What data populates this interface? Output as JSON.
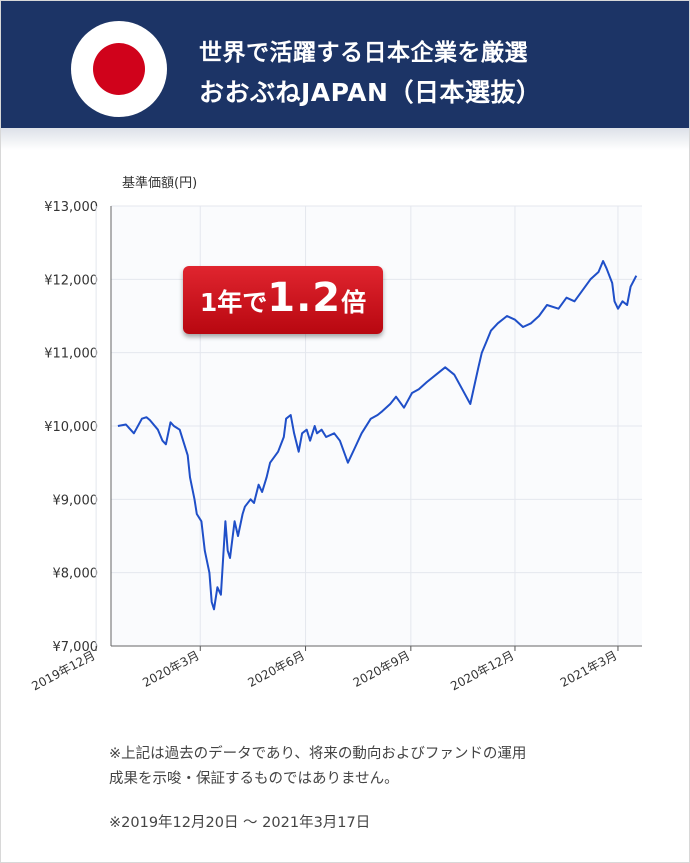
{
  "header": {
    "line1": "世界で活躍する日本企業を厳選",
    "line2": "おおぶねJAPAN（日本選抜）"
  },
  "badge": {
    "part1": "1年で",
    "part2": "1.2",
    "part3": "倍"
  },
  "colors": {
    "header_bg": "#1c3466",
    "flag_red": "#d0021b",
    "line": "#1f4fc8",
    "badge_red": "#cc0e17"
  },
  "icons": {
    "flag": "japan-flag-icon"
  },
  "notes": {
    "disclaimer_line1": "※上記は過去のデータであり、将来の動向およびファンドの運用",
    "disclaimer_line2": "成果を示唆・保証するものではありません。",
    "period": "※2019年12月20日 〜 2021年3月17日"
  },
  "chart_data": {
    "type": "line",
    "ylabel": "基準価額(円)",
    "ylim": [
      7000,
      13000
    ],
    "yticks": [
      7000,
      8000,
      9000,
      10000,
      11000,
      12000,
      13000
    ],
    "ytick_labels": [
      "¥7,000",
      "¥8,000",
      "¥9,000",
      "¥10,000",
      "¥11,000",
      "¥12,000",
      "¥13,000"
    ],
    "xlim": [
      "2019-12-14",
      "2021-03-22"
    ],
    "xticks": [
      "2019-12-01",
      "2020-03-01",
      "2020-06-01",
      "2020-09-01",
      "2020-12-01",
      "2021-03-01"
    ],
    "xtick_labels": [
      "2019年12月",
      "2020年3月",
      "2020年6月",
      "2020年9月",
      "2020年12月",
      "2021年3月"
    ],
    "grid": true,
    "series": [
      {
        "x": [
          "2019-12-20",
          "2019-12-27",
          "2020-01-03",
          "2020-01-10",
          "2020-01-14",
          "2020-01-17",
          "2020-01-24",
          "2020-01-28",
          "2020-01-31",
          "2020-02-04",
          "2020-02-07",
          "2020-02-12",
          "2020-02-19",
          "2020-02-21",
          "2020-02-25",
          "2020-02-27",
          "2020-03-02",
          "2020-03-05",
          "2020-03-09",
          "2020-03-11",
          "2020-03-13",
          "2020-03-16",
          "2020-03-19",
          "2020-03-23",
          "2020-03-25",
          "2020-03-27",
          "2020-03-31",
          "2020-04-03",
          "2020-04-07",
          "2020-04-09",
          "2020-04-14",
          "2020-04-17",
          "2020-04-21",
          "2020-04-24",
          "2020-04-28",
          "2020-05-01",
          "2020-05-08",
          "2020-05-13",
          "2020-05-15",
          "2020-05-19",
          "2020-05-22",
          "2020-05-26",
          "2020-05-29",
          "2020-06-02",
          "2020-06-05",
          "2020-06-09",
          "2020-06-11",
          "2020-06-15",
          "2020-06-19",
          "2020-06-26",
          "2020-07-01",
          "2020-07-08",
          "2020-07-14",
          "2020-07-20",
          "2020-07-28",
          "2020-08-03",
          "2020-08-07",
          "2020-08-14",
          "2020-08-19",
          "2020-08-26",
          "2020-09-02",
          "2020-09-08",
          "2020-09-15",
          "2020-09-23",
          "2020-10-01",
          "2020-10-09",
          "2020-10-16",
          "2020-10-23",
          "2020-10-30",
          "2020-11-02",
          "2020-11-06",
          "2020-11-10",
          "2020-11-16",
          "2020-11-24",
          "2020-12-01",
          "2020-12-08",
          "2020-12-15",
          "2020-12-22",
          "2020-12-29",
          "2021-01-08",
          "2021-01-15",
          "2021-01-22",
          "2021-01-29",
          "2021-02-05",
          "2021-02-12",
          "2021-02-16",
          "2021-02-19",
          "2021-02-24",
          "2021-02-26",
          "2021-03-01",
          "2021-03-05",
          "2021-03-09",
          "2021-03-12",
          "2021-03-17"
        ],
        "y": [
          10000,
          10020,
          9900,
          10100,
          10120,
          10080,
          9950,
          9800,
          9750,
          10050,
          10000,
          9950,
          9600,
          9300,
          9000,
          8800,
          8700,
          8300,
          8000,
          7600,
          7500,
          7800,
          7700,
          8700,
          8300,
          8200,
          8700,
          8500,
          8800,
          8900,
          9000,
          8950,
          9200,
          9100,
          9300,
          9500,
          9650,
          9850,
          10100,
          10150,
          9900,
          9650,
          9900,
          9950,
          9800,
          10000,
          9900,
          9950,
          9850,
          9900,
          9800,
          9500,
          9700,
          9900,
          10100,
          10150,
          10200,
          10300,
          10400,
          10250,
          10450,
          10500,
          10600,
          10700,
          10800,
          10700,
          10500,
          10300,
          10800,
          11000,
          11150,
          11300,
          11400,
          11500,
          11450,
          11350,
          11400,
          11500,
          11650,
          11600,
          11750,
          11700,
          11850,
          12000,
          12100,
          12250,
          12150,
          11950,
          11700,
          11600,
          11700,
          11650,
          11900,
          12050
        ]
      }
    ]
  }
}
